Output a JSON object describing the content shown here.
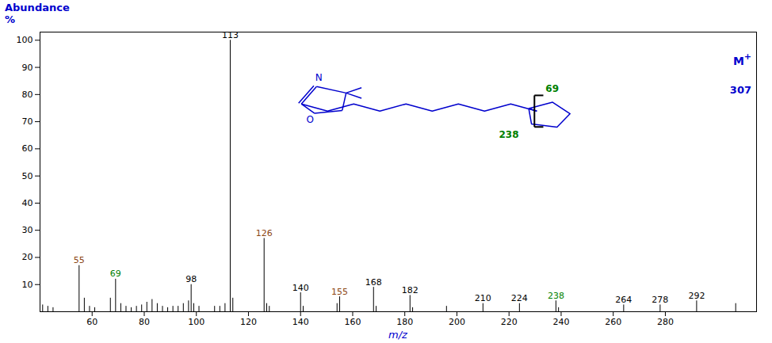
{
  "chart_data": {
    "type": "bar",
    "x": [
      41,
      43,
      45,
      55,
      57,
      59,
      61,
      67,
      69,
      71,
      73,
      75,
      77,
      79,
      81,
      83,
      85,
      87,
      89,
      91,
      93,
      95,
      97,
      98,
      99,
      101,
      107,
      109,
      111,
      113,
      114,
      126,
      127,
      128,
      140,
      141,
      154,
      155,
      168,
      169,
      182,
      183,
      196,
      210,
      224,
      238,
      239,
      264,
      278,
      292,
      307
    ],
    "values": [
      2.5,
      2.0,
      1.5,
      17,
      5,
      2,
      1.5,
      5,
      12,
      3,
      2,
      1.5,
      2,
      2.5,
      3.5,
      4.5,
      3,
      2,
      1.5,
      2,
      2,
      3,
      4,
      10,
      3,
      2,
      2,
      2,
      3,
      100,
      5,
      27,
      3,
      2,
      7,
      2,
      3,
      5.5,
      9,
      2,
      6,
      1.5,
      2,
      3,
      3,
      4,
      1.5,
      2.5,
      2.5,
      4,
      3
    ],
    "color": "black",
    "xlabel": "m/z",
    "ylabel": "Abundance\n%",
    "axis_label_color": "#0000CD",
    "xlim": [
      40,
      315
    ],
    "ylim": [
      0,
      103
    ],
    "xticks": [
      60,
      80,
      100,
      120,
      140,
      160,
      180,
      200,
      220,
      240,
      260,
      280
    ],
    "yticks": [
      10,
      20,
      30,
      40,
      50,
      60,
      70,
      80,
      90,
      100
    ],
    "grid": false,
    "annotations": [
      {
        "x": 55,
        "y": 17,
        "text": "55",
        "color": "#8B4513"
      },
      {
        "x": 69,
        "y": 12,
        "text": "69",
        "color": "#008000"
      },
      {
        "x": 98,
        "y": 10,
        "text": "98",
        "color": "black"
      },
      {
        "x": 113,
        "y": 100,
        "text": "113",
        "color": "black"
      },
      {
        "x": 126,
        "y": 27,
        "text": "126",
        "color": "#8B4513"
      },
      {
        "x": 140,
        "y": 7,
        "text": "140",
        "color": "black"
      },
      {
        "x": 155,
        "y": 5.5,
        "text": "155",
        "color": "#8B4513"
      },
      {
        "x": 168,
        "y": 9,
        "text": "168",
        "color": "black"
      },
      {
        "x": 182,
        "y": 6,
        "text": "182",
        "color": "black"
      },
      {
        "x": 210,
        "y": 3,
        "text": "210",
        "color": "black"
      },
      {
        "x": 224,
        "y": 3,
        "text": "224",
        "color": "black"
      },
      {
        "x": 238,
        "y": 4,
        "text": "238",
        "color": "#008000"
      },
      {
        "x": 264,
        "y": 2.5,
        "text": "264",
        "color": "black"
      },
      {
        "x": 278,
        "y": 2.5,
        "text": "278",
        "color": "black"
      },
      {
        "x": 292,
        "y": 4,
        "text": "292",
        "color": "black"
      }
    ],
    "molecular_ion": {
      "text": "M",
      "superscript": "+",
      "mz_label": "307",
      "color": "#0000CD"
    },
    "structure_color": "#0000CD",
    "structure_labels": [
      {
        "text": "N",
        "color": "#0000CD"
      },
      {
        "text": "O",
        "color": "#0000CD"
      },
      {
        "text": "69",
        "color": "#008000"
      },
      {
        "text": "238",
        "color": "#008000"
      }
    ]
  }
}
